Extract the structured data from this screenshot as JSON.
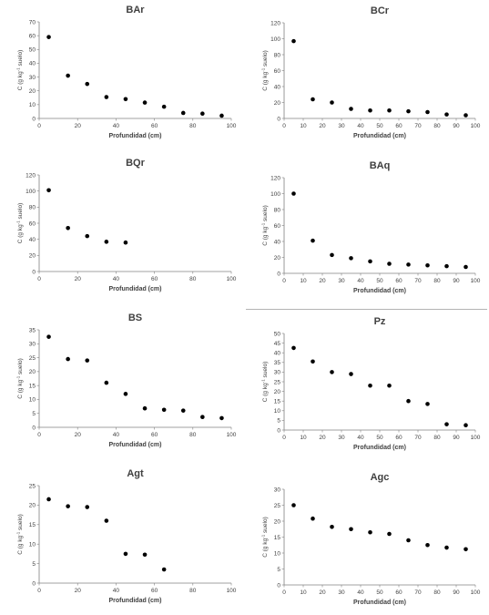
{
  "figure": {
    "x_label": "Profundidad (cm)",
    "y_label_prefix": "C (g kg",
    "y_label_sup": "-1",
    "y_label_suffix": " suelo)"
  },
  "chart_data": [
    {
      "type": "scatter",
      "title": "BAr",
      "xlim": [
        0,
        100
      ],
      "ylim": [
        0,
        70
      ],
      "xticks": [
        "0",
        "20",
        "40",
        "60",
        "80",
        "100"
      ],
      "yticks": [
        "0",
        "10",
        "20",
        "30",
        "40",
        "50",
        "60",
        "70"
      ],
      "x": [
        5,
        15,
        25,
        35,
        45,
        55,
        65,
        75,
        85,
        95
      ],
      "y": [
        59,
        31,
        25,
        15.5,
        14,
        11.5,
        8.5,
        4,
        3.5,
        2
      ],
      "xlabel": "Profundidad (cm)",
      "grid": false,
      "legend": false
    },
    {
      "type": "scatter",
      "title": "BCr",
      "xlim": [
        0,
        100
      ],
      "ylim": [
        0,
        120
      ],
      "xticks": [
        "0",
        "10",
        "20",
        "30",
        "40",
        "50",
        "60",
        "70",
        "80",
        "90",
        "100"
      ],
      "yticks": [
        "0",
        "20",
        "40",
        "60",
        "80",
        "100",
        "120"
      ],
      "x": [
        5,
        15,
        25,
        35,
        45,
        55,
        65,
        75,
        85,
        95
      ],
      "y": [
        97,
        24,
        20,
        12,
        10,
        10,
        9,
        8,
        5,
        4
      ],
      "xlabel": "Profundidad (cm)",
      "grid": false,
      "legend": false
    },
    {
      "type": "scatter",
      "title": "BQr",
      "xlim": [
        0,
        100
      ],
      "ylim": [
        0,
        120
      ],
      "xticks": [
        "0",
        "20",
        "40",
        "60",
        "80",
        "100"
      ],
      "yticks": [
        "0",
        "20",
        "40",
        "60",
        "80",
        "100",
        "120"
      ],
      "x": [
        5,
        15,
        25,
        35,
        45
      ],
      "y": [
        101,
        54,
        44,
        37,
        36
      ],
      "xlabel": "Profundidad (cm)",
      "grid": false,
      "legend": false
    },
    {
      "type": "scatter",
      "title": "BAq",
      "xlim": [
        0,
        100
      ],
      "ylim": [
        0,
        120
      ],
      "xticks": [
        "0",
        "10",
        "20",
        "30",
        "40",
        "50",
        "60",
        "70",
        "80",
        "90",
        "100"
      ],
      "yticks": [
        "0",
        "20",
        "40",
        "60",
        "80",
        "100",
        "120"
      ],
      "x": [
        5,
        15,
        25,
        35,
        45,
        55,
        65,
        75,
        85,
        95
      ],
      "y": [
        100,
        41,
        23,
        19,
        15,
        12,
        11,
        10,
        9,
        8
      ],
      "xlabel": "Profundidad (cm)",
      "grid": false,
      "legend": false
    },
    {
      "type": "scatter",
      "title": "BS",
      "xlim": [
        0,
        100
      ],
      "ylim": [
        0,
        35
      ],
      "xticks": [
        "0",
        "20",
        "40",
        "60",
        "80",
        "100"
      ],
      "yticks": [
        "0",
        "5",
        "10",
        "15",
        "20",
        "25",
        "30",
        "35"
      ],
      "x": [
        5,
        15,
        25,
        35,
        45,
        55,
        65,
        75,
        85,
        95
      ],
      "y": [
        32.5,
        24.5,
        24,
        16,
        12,
        6.8,
        6.3,
        6,
        3.7,
        3.3
      ],
      "xlabel": "Profundidad (cm)",
      "grid": false,
      "legend": false
    },
    {
      "type": "scatter",
      "title": "Pz",
      "xlim": [
        0,
        100
      ],
      "ylim": [
        0,
        50
      ],
      "xticks": [
        "0",
        "10",
        "20",
        "30",
        "40",
        "50",
        "60",
        "70",
        "80",
        "90",
        "100"
      ],
      "yticks": [
        "0",
        "5",
        "10",
        "15",
        "20",
        "25",
        "30",
        "35",
        "40",
        "45",
        "50"
      ],
      "x": [
        5,
        15,
        25,
        35,
        45,
        55,
        65,
        75,
        85,
        95
      ],
      "y": [
        42.5,
        35.5,
        30,
        29,
        23,
        23,
        15,
        13.5,
        3,
        2.5
      ],
      "xlabel": "Profundidad (cm)",
      "grid": false,
      "legend": false
    },
    {
      "type": "scatter",
      "title": "Agt",
      "xlim": [
        0,
        100
      ],
      "ylim": [
        0,
        25
      ],
      "xticks": [
        "0",
        "20",
        "40",
        "60",
        "80",
        "100"
      ],
      "yticks": [
        "0",
        "5",
        "10",
        "15",
        "20",
        "25"
      ],
      "x": [
        5,
        15,
        25,
        35,
        45,
        55,
        65
      ],
      "y": [
        21.5,
        19.7,
        19.5,
        16,
        7.5,
        7.3,
        3.5
      ],
      "xlabel": "Profundidad (cm)",
      "grid": false,
      "legend": false
    },
    {
      "type": "scatter",
      "title": "Agc",
      "xlim": [
        0,
        100
      ],
      "ylim": [
        0,
        30
      ],
      "xticks": [
        "0",
        "10",
        "20",
        "30",
        "40",
        "50",
        "60",
        "70",
        "80",
        "90",
        "100"
      ],
      "yticks": [
        "0",
        "5",
        "10",
        "15",
        "20",
        "25",
        "30"
      ],
      "x": [
        5,
        15,
        25,
        35,
        45,
        55,
        65,
        75,
        85,
        95
      ],
      "y": [
        25,
        20.8,
        18.2,
        17.5,
        16.5,
        16,
        14,
        12.5,
        11.7,
        11.2
      ],
      "xlabel": "Profundidad (cm)",
      "grid": false,
      "legend": false
    }
  ]
}
